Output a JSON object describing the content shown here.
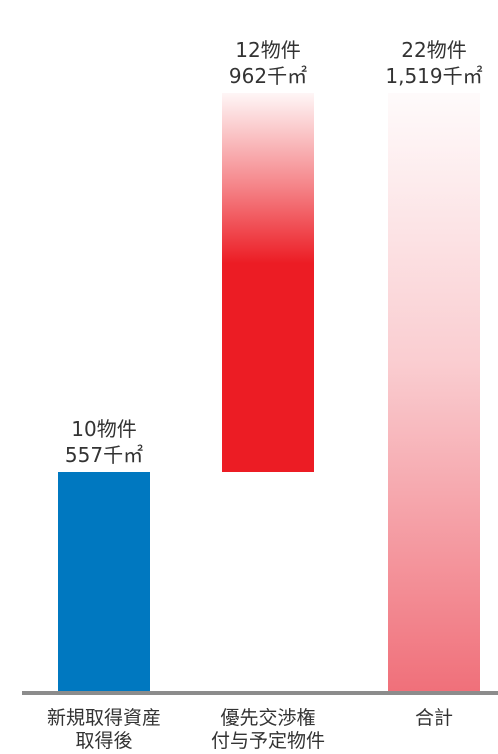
{
  "chart_data": {
    "type": "bar",
    "subtype": "waterfall",
    "categories": [
      {
        "line1": "新規取得資産",
        "line2": "取得後"
      },
      {
        "line1": "優先交渉権",
        "line2": "付与予定物件"
      },
      {
        "line1": "合計",
        "line2": ""
      }
    ],
    "bars": [
      {
        "start": 0,
        "end": 557,
        "count": 10,
        "count_label": "10物件",
        "area_label": "557千㎡",
        "color": "#0078c0",
        "style": "solid"
      },
      {
        "start": 557,
        "end": 1519,
        "count": 12,
        "count_label": "12物件",
        "area_label": "962千㎡",
        "color": "#ec1c24",
        "style": "fade-top"
      },
      {
        "start": 0,
        "end": 1519,
        "count": 22,
        "count_label": "22物件",
        "area_label": "1,519千㎡",
        "color": "#f0707a",
        "style": "fade-top"
      }
    ],
    "unit": "千㎡",
    "ylim": [
      0,
      1519
    ],
    "grid": false,
    "legend": "none"
  }
}
